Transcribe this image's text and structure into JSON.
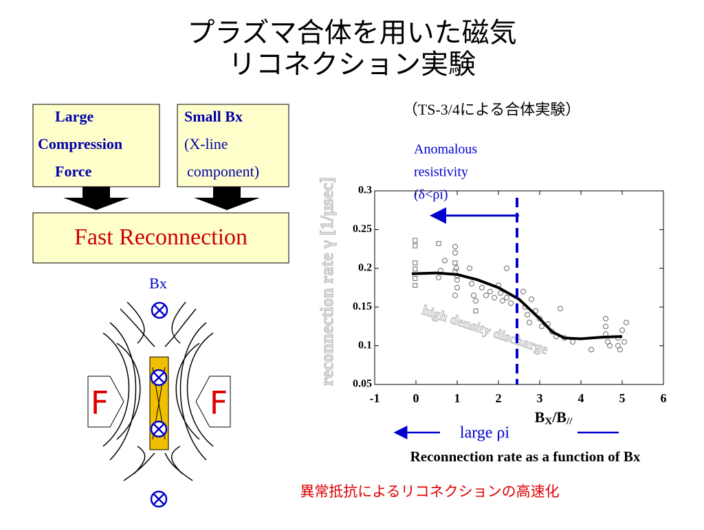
{
  "slide": {
    "title": [
      "プラズマ合体を用いた磁気",
      "リコネクション実験"
    ],
    "subtitle": "（TS-3/4による合体実験）",
    "box_compression": [
      "Large",
      "Compression",
      "Force"
    ],
    "box_bx": [
      "Small Bx",
      "(X-line",
      "component)"
    ],
    "box_fast": "Fast Reconnection",
    "diagram_bx": "Bx",
    "diagram_force": [
      "F",
      "F"
    ],
    "caption": "Reconnection rate as a function of Bx",
    "footer": "異常抵抗によるリコネクションの高速化"
  },
  "chart_data": {
    "type": "scatter",
    "y_label": "reconnection rate γ [1/μsec]",
    "x_label": [
      "B",
      "X",
      "/B",
      "//"
    ],
    "faded_annotation": "high density discharge",
    "threshold_label": [
      "Anomalous",
      "resistivity",
      "(δ<ρi)"
    ],
    "arrow_label": "large ρi",
    "xlim": [
      -1,
      6
    ],
    "ylim": [
      0.05,
      0.3
    ],
    "xticks": [
      -1,
      0,
      1,
      2,
      3,
      4,
      5,
      6
    ],
    "yticks": [
      0.05,
      0.1,
      0.15,
      0.2,
      0.25,
      0.3
    ],
    "threshold_x": 2.45,
    "series": [
      {
        "marker": "square",
        "color": "#666666",
        "x": [
          -0.02,
          -0.02,
          -0.02,
          -0.02,
          -0.02,
          -0.02,
          0.55,
          0.95,
          0.95,
          1.45
        ],
        "y": [
          0.236,
          0.229,
          0.207,
          0.199,
          0.187,
          0.178,
          0.232,
          0.207,
          0.196,
          0.145
        ]
      },
      {
        "marker": "circle",
        "color": "#666666",
        "x": [
          0.55,
          0.6,
          0.7,
          0.95,
          0.95,
          0.98,
          1.0,
          1.0,
          1.0,
          0.95,
          1.3,
          1.35,
          1.4,
          1.45,
          1.6,
          1.7,
          1.8,
          1.9,
          2.0,
          2.05,
          2.1,
          2.2,
          2.3,
          2.2,
          2.6,
          2.65,
          2.7,
          2.75,
          2.8,
          2.9,
          3.0,
          3.05,
          3.2,
          3.3,
          3.4,
          3.5,
          3.6,
          3.8,
          4.25,
          4.6,
          4.6,
          4.6,
          4.65,
          4.7,
          4.9,
          4.9,
          4.95,
          5.0,
          5.1,
          5.05
        ],
        "y": [
          0.188,
          0.197,
          0.21,
          0.228,
          0.22,
          0.2,
          0.19,
          0.185,
          0.175,
          0.165,
          0.2,
          0.18,
          0.165,
          0.158,
          0.175,
          0.165,
          0.17,
          0.162,
          0.178,
          0.168,
          0.158,
          0.162,
          0.155,
          0.2,
          0.17,
          0.15,
          0.14,
          0.13,
          0.16,
          0.145,
          0.135,
          0.125,
          0.128,
          0.118,
          0.112,
          0.148,
          0.11,
          0.105,
          0.095,
          0.135,
          0.125,
          0.115,
          0.105,
          0.1,
          0.11,
          0.1,
          0.095,
          0.12,
          0.13,
          0.105
        ]
      },
      {
        "marker": "line",
        "color": "#000000",
        "x": [
          -0.1,
          0.5,
          1,
          1.5,
          2,
          2.5,
          3,
          3.3,
          3.6,
          4,
          4.5,
          5
        ],
        "y": [
          0.193,
          0.194,
          0.192,
          0.185,
          0.175,
          0.16,
          0.135,
          0.118,
          0.11,
          0.109,
          0.111,
          0.112
        ]
      }
    ]
  }
}
